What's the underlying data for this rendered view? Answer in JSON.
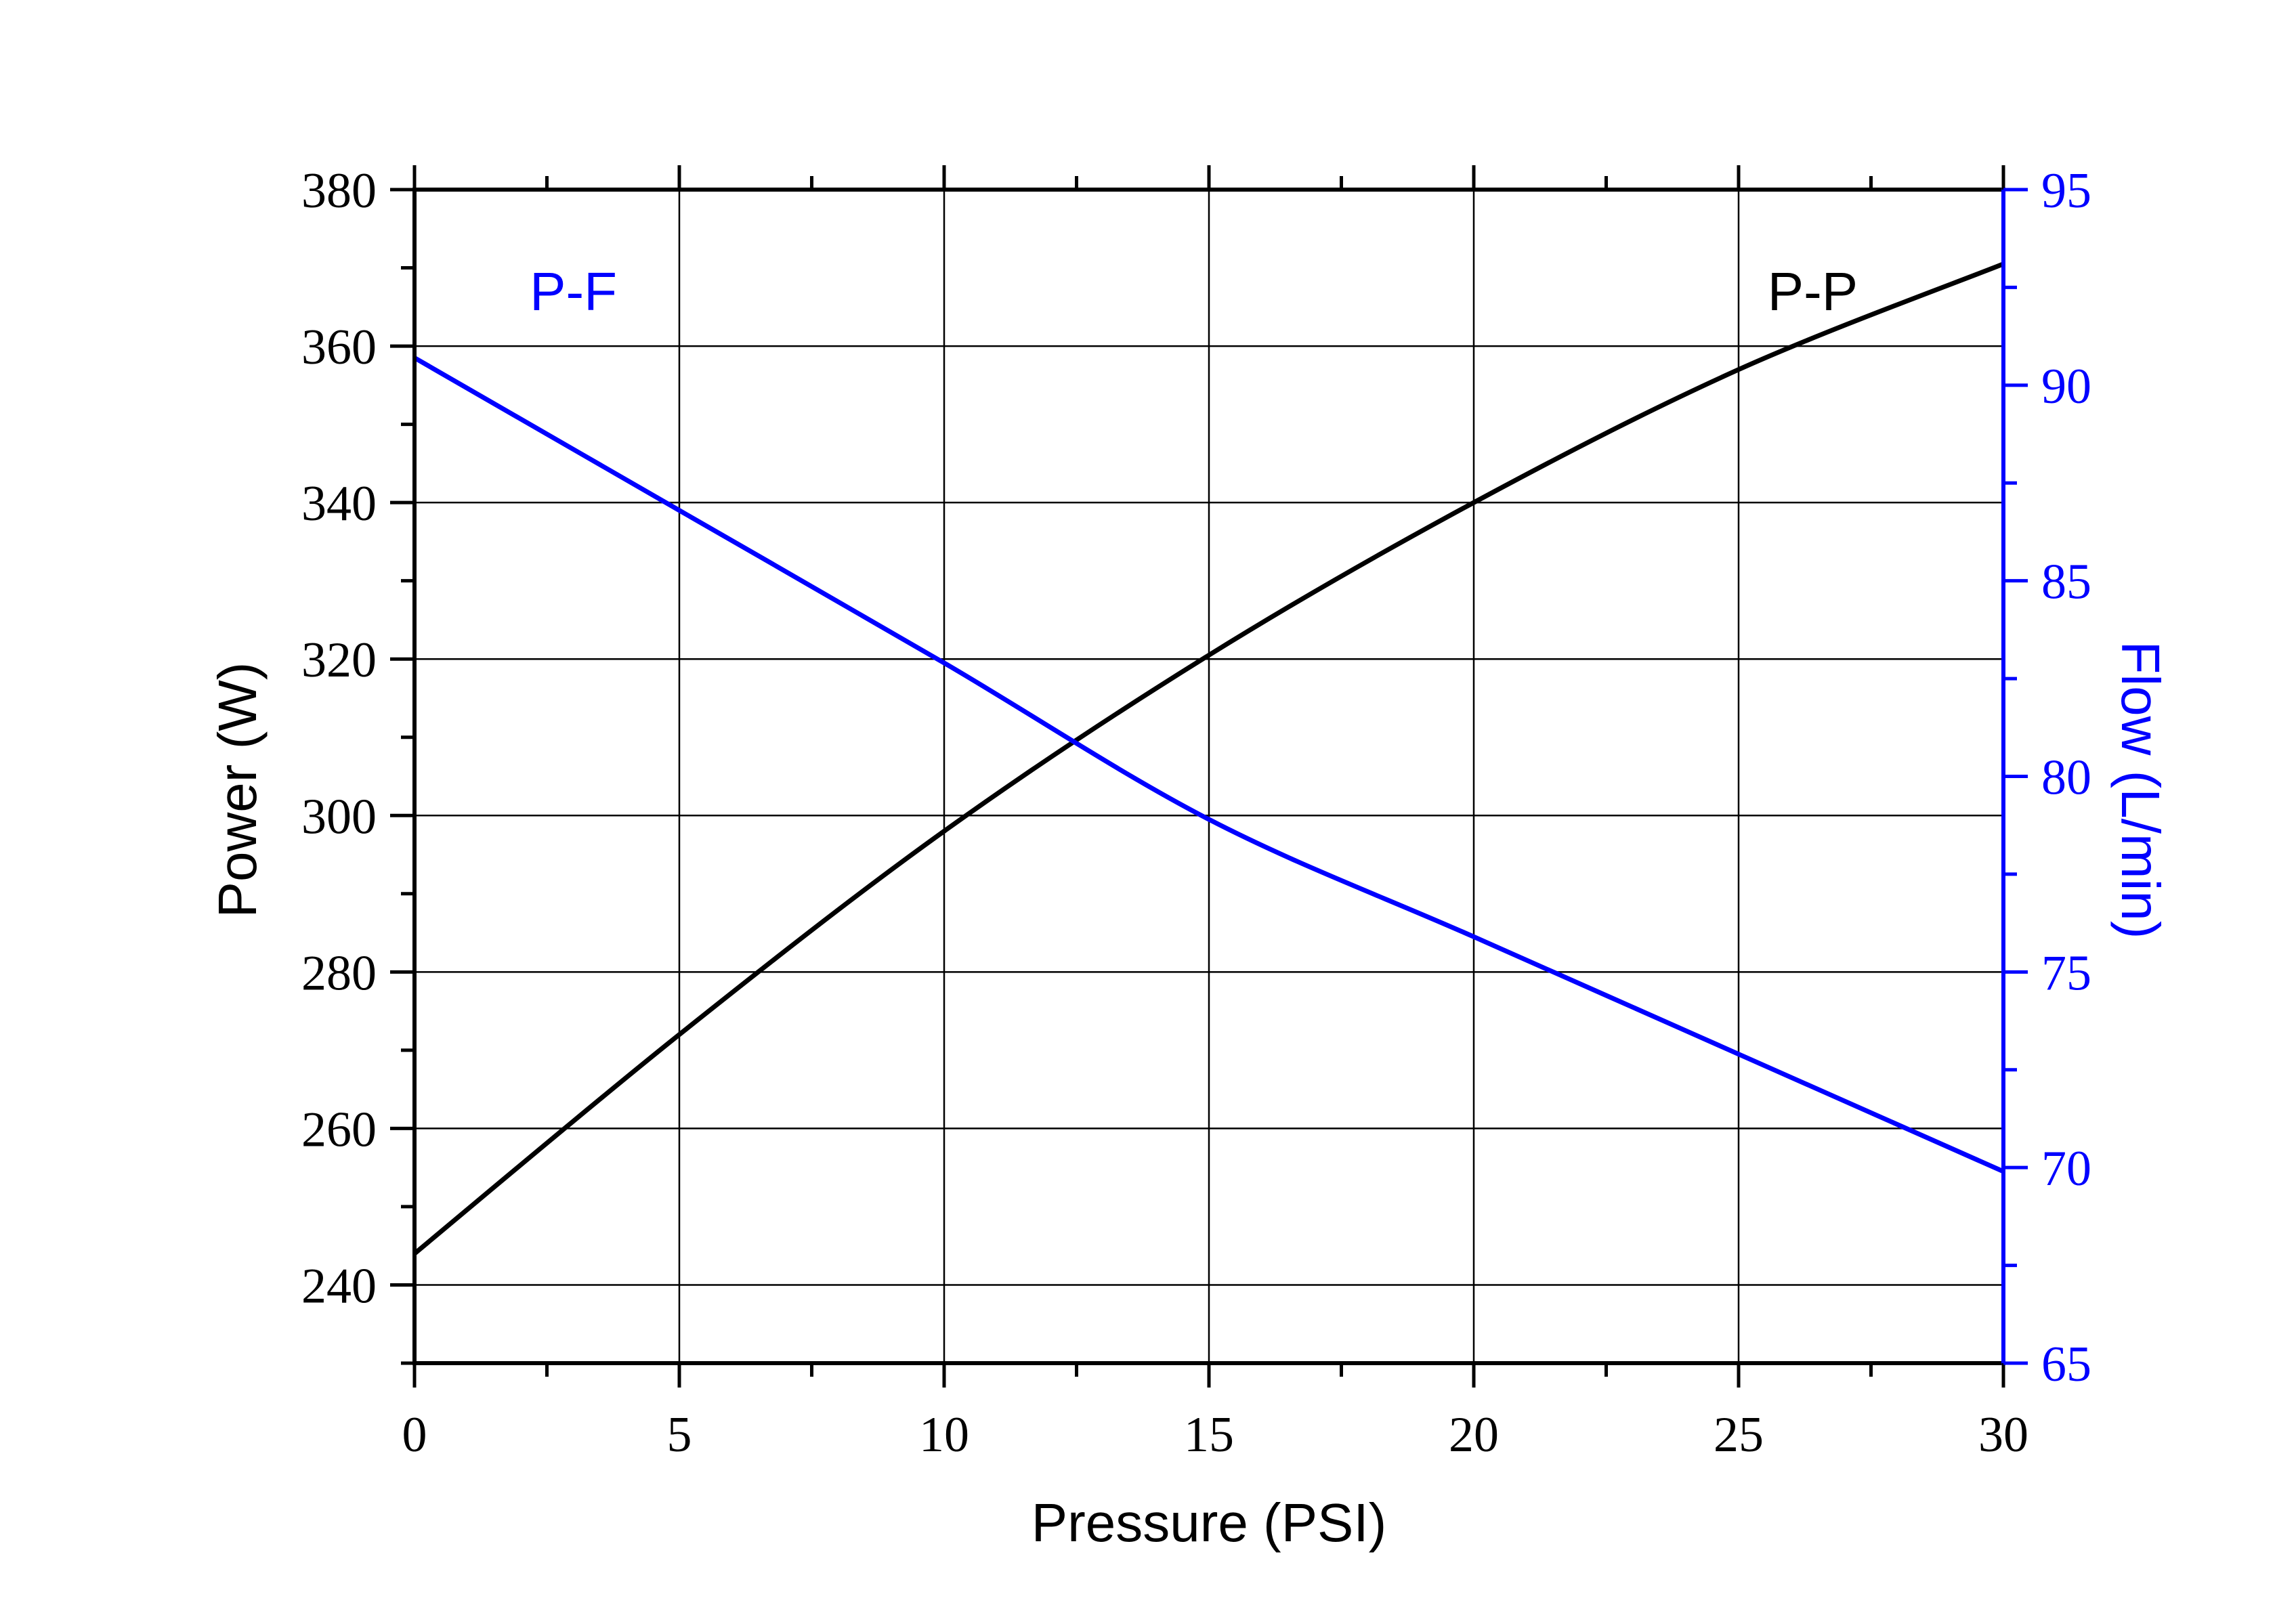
{
  "chart_data": {
    "type": "line",
    "title": "",
    "xlabel": "Pressure (PSI)",
    "ylabel_left": "Power (W)",
    "ylabel_right": "Flow (L/min)",
    "xlim": [
      0,
      30
    ],
    "ylim_left": [
      230,
      380
    ],
    "ylim_right": [
      65,
      95
    ],
    "x_ticks": [
      0,
      5,
      10,
      15,
      20,
      25,
      30
    ],
    "x_tick_labels": [
      "0",
      "5",
      "10",
      "15",
      "20",
      "25",
      "30"
    ],
    "y_left_ticks": [
      240,
      260,
      280,
      300,
      320,
      340,
      360,
      380
    ],
    "y_left_tick_labels": [
      "240",
      "260",
      "280",
      "300",
      "320",
      "340",
      "360",
      "380"
    ],
    "y_right_ticks": [
      65,
      70,
      75,
      80,
      85,
      90,
      95
    ],
    "y_right_tick_labels": [
      "65",
      "70",
      "75",
      "80",
      "85",
      "90",
      "95"
    ],
    "grid": true,
    "series": [
      {
        "name": "P-P",
        "axis": "left",
        "color": "#000000",
        "x": [
          0,
          5,
          10,
          15,
          20,
          25,
          30
        ],
        "y": [
          244,
          272,
          298,
          320.5,
          340,
          357,
          370.5
        ]
      },
      {
        "name": "P-F",
        "axis": "right",
        "color": "#0000ff",
        "x": [
          0,
          5,
          10,
          15,
          20,
          25,
          30
        ],
        "y": [
          90.7,
          86.8,
          82.9,
          78.9,
          75.9,
          72.9,
          69.9
        ]
      }
    ],
    "annotations": [
      {
        "text": "P-F",
        "color": "#0000ff",
        "x": 3,
        "y_left": 367
      },
      {
        "text": "P-P",
        "color": "#000000",
        "x": 26.4,
        "y_left": 367
      }
    ],
    "colors": {
      "left_axis": "#000000",
      "right_axis": "#0000ff",
      "grid": "#000000"
    }
  }
}
